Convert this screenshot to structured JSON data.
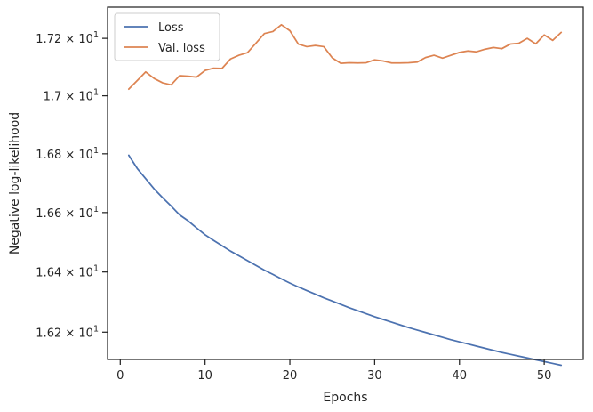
{
  "chart_data": {
    "type": "line",
    "title": "",
    "xlabel": "Epochs",
    "ylabel": "Negative log-likelihood",
    "xlim": [
      -1.5,
      54.6
    ],
    "ylim": [
      16.11,
      17.31
    ],
    "yscale": "log",
    "grid": false,
    "legend_position": "top-left",
    "x_ticks": [
      {
        "value": 0,
        "label": "0"
      },
      {
        "value": 10,
        "label": "10"
      },
      {
        "value": 20,
        "label": "20"
      },
      {
        "value": 30,
        "label": "30"
      },
      {
        "value": 40,
        "label": "40"
      },
      {
        "value": 50,
        "label": "50"
      }
    ],
    "y_ticks": [
      {
        "value": 16.2,
        "mantissa": "1.62",
        "base": "10",
        "exp": "1"
      },
      {
        "value": 16.4,
        "mantissa": "1.64",
        "base": "10",
        "exp": "1"
      },
      {
        "value": 16.6,
        "mantissa": "1.66",
        "base": "10",
        "exp": "1"
      },
      {
        "value": 16.8,
        "mantissa": "1.68",
        "base": "10",
        "exp": "1"
      },
      {
        "value": 17.0,
        "mantissa": "1.7",
        "base": "10",
        "exp": "1"
      },
      {
        "value": 17.2,
        "mantissa": "1.72",
        "base": "10",
        "exp": "1"
      }
    ],
    "x": [
      1,
      2,
      3,
      4,
      5,
      6,
      7,
      8,
      9,
      10,
      11,
      12,
      13,
      14,
      15,
      16,
      17,
      18,
      19,
      20,
      21,
      22,
      23,
      24,
      25,
      26,
      27,
      28,
      29,
      30,
      31,
      32,
      33,
      34,
      35,
      36,
      37,
      38,
      39,
      40,
      41,
      42,
      43,
      44,
      45,
      46,
      47,
      48,
      49,
      50,
      51,
      52
    ],
    "series": [
      {
        "name": "Loss",
        "color": "#4c72b0",
        "values": [
          16.795,
          16.75,
          16.715,
          16.68,
          16.65,
          16.622,
          16.592,
          16.572,
          16.548,
          16.525,
          16.506,
          16.488,
          16.47,
          16.454,
          16.438,
          16.422,
          16.406,
          16.392,
          16.377,
          16.363,
          16.35,
          16.338,
          16.326,
          16.314,
          16.303,
          16.292,
          16.281,
          16.271,
          16.261,
          16.251,
          16.242,
          16.233,
          16.224,
          16.215,
          16.207,
          16.199,
          16.191,
          16.183,
          16.175,
          16.168,
          16.161,
          16.154,
          16.147,
          16.14,
          16.133,
          16.127,
          16.121,
          16.115,
          16.109,
          16.103,
          16.097,
          16.091
        ]
      },
      {
        "name": "Val. loss",
        "color": "#dd8452",
        "values": [
          17.023,
          17.053,
          17.083,
          17.06,
          17.045,
          17.038,
          17.07,
          17.068,
          17.065,
          17.088,
          17.096,
          17.095,
          17.128,
          17.141,
          17.15,
          17.183,
          17.217,
          17.224,
          17.248,
          17.227,
          17.18,
          17.171,
          17.175,
          17.171,
          17.132,
          17.113,
          17.115,
          17.114,
          17.115,
          17.125,
          17.121,
          17.114,
          17.114,
          17.115,
          17.117,
          17.133,
          17.141,
          17.131,
          17.141,
          17.151,
          17.156,
          17.153,
          17.162,
          17.168,
          17.164,
          17.18,
          17.183,
          17.2,
          17.181,
          17.212,
          17.193,
          17.221
        ]
      }
    ]
  }
}
